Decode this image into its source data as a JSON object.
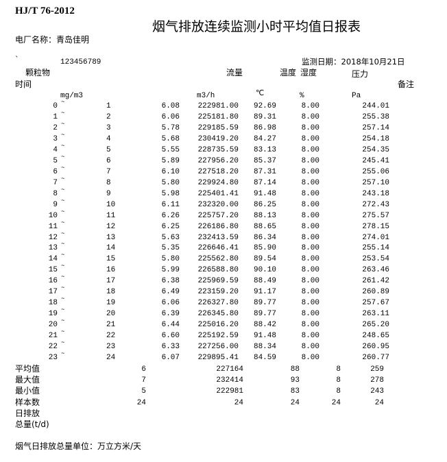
{
  "header": {
    "standard": "HJ/T 76-2012",
    "title": "烟气排放连续监测小时平均值日报表",
    "plant_label": "电厂名称：青岛佳明",
    "mark": "`",
    "code": "123456789",
    "date_label": "监测日期：2018年10月21日"
  },
  "columns": {
    "particles": "颗粒物",
    "flow": "流量",
    "temperature": "温度",
    "humidity": "湿度",
    "pressure": "压力",
    "time": "时间",
    "remark": "备注",
    "units": {
      "particles": "mg/m3",
      "flow": "m3/h",
      "temperature": "℃",
      "humidity": "%",
      "pressure": "Pa"
    }
  },
  "tilde": "~",
  "rows": [
    {
      "from": "0",
      "to": "1",
      "particles": "6.08",
      "flow": "222981.00",
      "temperature": "92.69",
      "humidity": "8.00",
      "pressure": "244.01"
    },
    {
      "from": "1",
      "to": "2",
      "particles": "6.06",
      "flow": "225181.80",
      "temperature": "89.31",
      "humidity": "8.00",
      "pressure": "255.38"
    },
    {
      "from": "2",
      "to": "3",
      "particles": "5.78",
      "flow": "229185.59",
      "temperature": "86.98",
      "humidity": "8.00",
      "pressure": "257.14"
    },
    {
      "from": "3",
      "to": "4",
      "particles": "5.68",
      "flow": "230419.20",
      "temperature": "84.27",
      "humidity": "8.00",
      "pressure": "254.18"
    },
    {
      "from": "4",
      "to": "5",
      "particles": "5.55",
      "flow": "228735.59",
      "temperature": "83.13",
      "humidity": "8.00",
      "pressure": "254.35"
    },
    {
      "from": "5",
      "to": "6",
      "particles": "5.89",
      "flow": "227956.20",
      "temperature": "85.37",
      "humidity": "8.00",
      "pressure": "245.41"
    },
    {
      "from": "6",
      "to": "7",
      "particles": "6.10",
      "flow": "227518.20",
      "temperature": "87.31",
      "humidity": "8.00",
      "pressure": "255.06"
    },
    {
      "from": "7",
      "to": "8",
      "particles": "5.80",
      "flow": "229924.80",
      "temperature": "87.14",
      "humidity": "8.00",
      "pressure": "257.10"
    },
    {
      "from": "8",
      "to": "9",
      "particles": "5.98",
      "flow": "225401.41",
      "temperature": "91.48",
      "humidity": "8.00",
      "pressure": "243.18"
    },
    {
      "from": "9",
      "to": "10",
      "particles": "6.11",
      "flow": "232320.00",
      "temperature": "86.25",
      "humidity": "8.00",
      "pressure": "272.43"
    },
    {
      "from": "10",
      "to": "11",
      "particles": "6.26",
      "flow": "225757.20",
      "temperature": "88.13",
      "humidity": "8.00",
      "pressure": "275.57"
    },
    {
      "from": "11",
      "to": "12",
      "particles": "6.25",
      "flow": "226186.80",
      "temperature": "88.65",
      "humidity": "8.00",
      "pressure": "278.15"
    },
    {
      "from": "12",
      "to": "13",
      "particles": "5.63",
      "flow": "232413.59",
      "temperature": "86.34",
      "humidity": "8.00",
      "pressure": "274.01"
    },
    {
      "from": "13",
      "to": "14",
      "particles": "5.35",
      "flow": "226646.41",
      "temperature": "85.90",
      "humidity": "8.00",
      "pressure": "255.14"
    },
    {
      "from": "14",
      "to": "15",
      "particles": "5.80",
      "flow": "225562.80",
      "temperature": "89.54",
      "humidity": "8.00",
      "pressure": "253.54"
    },
    {
      "from": "15",
      "to": "16",
      "particles": "5.99",
      "flow": "226588.80",
      "temperature": "90.10",
      "humidity": "8.00",
      "pressure": "263.46"
    },
    {
      "from": "16",
      "to": "17",
      "particles": "6.38",
      "flow": "225969.59",
      "temperature": "88.49",
      "humidity": "8.00",
      "pressure": "261.42"
    },
    {
      "from": "17",
      "to": "18",
      "particles": "6.49",
      "flow": "223159.20",
      "temperature": "91.17",
      "humidity": "8.00",
      "pressure": "260.89"
    },
    {
      "from": "18",
      "to": "19",
      "particles": "6.06",
      "flow": "226327.80",
      "temperature": "89.77",
      "humidity": "8.00",
      "pressure": "257.67"
    },
    {
      "from": "19",
      "to": "20",
      "particles": "6.39",
      "flow": "226345.80",
      "temperature": "89.77",
      "humidity": "8.00",
      "pressure": "263.11"
    },
    {
      "from": "20",
      "to": "21",
      "particles": "6.44",
      "flow": "225016.20",
      "temperature": "88.42",
      "humidity": "8.00",
      "pressure": "265.20"
    },
    {
      "from": "21",
      "to": "22",
      "particles": "6.60",
      "flow": "225192.59",
      "temperature": "91.48",
      "humidity": "8.00",
      "pressure": "248.65"
    },
    {
      "from": "22",
      "to": "23",
      "particles": "6.33",
      "flow": "227256.00",
      "temperature": "88.34",
      "humidity": "8.00",
      "pressure": "260.95"
    },
    {
      "from": "23",
      "to": "24",
      "particles": "6.07",
      "flow": "229895.41",
      "temperature": "84.59",
      "humidity": "8.00",
      "pressure": "260.77"
    }
  ],
  "summary": [
    {
      "label": "平均值",
      "particles": "6",
      "flow": "227164",
      "temperature": "88",
      "humidity": "8",
      "pressure": "259"
    },
    {
      "label": "最大值",
      "particles": "7",
      "flow": "232414",
      "temperature": "93",
      "humidity": "8",
      "pressure": "278"
    },
    {
      "label": "最小值",
      "particles": "5",
      "flow": "222981",
      "temperature": "83",
      "humidity": "8",
      "pressure": "243"
    },
    {
      "label": "样本数",
      "particles": "24",
      "flow": "24",
      "temperature": "24",
      "humidity": "24",
      "pressure": "24"
    }
  ],
  "daily_emission_label": "日排放",
  "total_label": "总量(t/d)",
  "footer": "烟气日排放总量单位：万立方米/天"
}
